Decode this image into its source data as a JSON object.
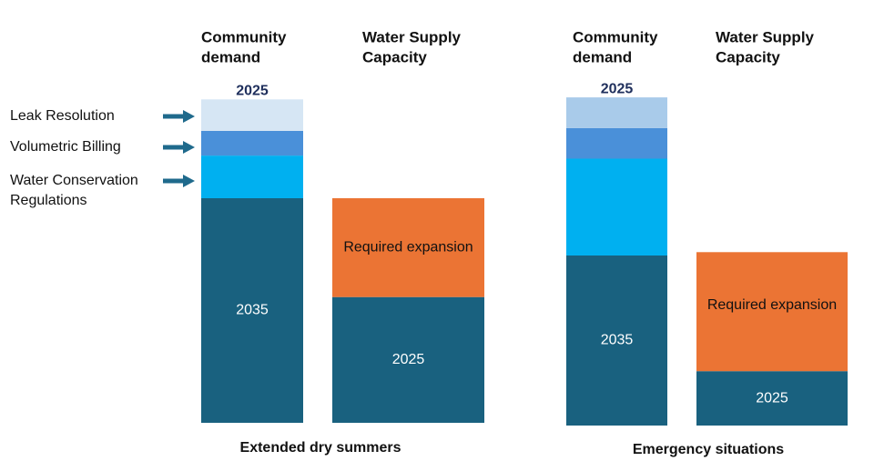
{
  "chart_data": {
    "type": "bar",
    "title": "",
    "value_unit": "relative water volume (estimated, 2035 demand = 100)",
    "legend_labels": [
      "Leak Resolution",
      "Volumetric Billing",
      "Water Conservation Regulations"
    ],
    "colors": {
      "demand_base": "#19617f",
      "conservation_regulations": "#00b0f0",
      "volumetric_billing": "#4a90d9",
      "leak_resolution": "#d6e6f4",
      "leak_resolution_alt": "#a9cbea",
      "required_expansion": "#eb7434",
      "capacity_base": "#19617f",
      "axis_text": "#111111",
      "year_label_dark": "#1f2f5c",
      "arrow": "#1f6a8c"
    },
    "panels": [
      {
        "id": "extended-dry-summers",
        "scenario": "Extended dry summers",
        "demand_header": "Community\ndemand",
        "capacity_header": "Water Supply\nCapacity",
        "demand_top_label": "2025",
        "demand": [
          {
            "key": "base",
            "label": "2035",
            "value": 100,
            "color_key": "demand_base"
          },
          {
            "key": "conservation_regulations",
            "label": "",
            "value": 19,
            "color_key": "conservation_regulations"
          },
          {
            "key": "volumetric_billing",
            "label": "",
            "value": 11,
            "color_key": "volumetric_billing"
          },
          {
            "key": "leak_resolution",
            "label": "",
            "value": 14,
            "color_key": "leak_resolution"
          }
        ],
        "capacity": [
          {
            "key": "base",
            "label": "2025",
            "value": 56,
            "color_key": "capacity_base"
          },
          {
            "key": "required_expansion",
            "label": "Required expansion",
            "value": 44,
            "color_key": "required_expansion"
          }
        ]
      },
      {
        "id": "emergency-situations",
        "scenario": "Emergency situations",
        "demand_header": "Community\ndemand",
        "capacity_header": "Water Supply\nCapacity",
        "demand_top_label": "2025",
        "demand": [
          {
            "key": "base",
            "label": "2035",
            "value": 100,
            "color_key": "demand_base"
          },
          {
            "key": "conservation_regulations",
            "label": "",
            "value": 57,
            "color_key": "conservation_regulations"
          },
          {
            "key": "volumetric_billing",
            "label": "",
            "value": 18,
            "color_key": "volumetric_billing"
          },
          {
            "key": "leak_resolution",
            "label": "",
            "value": 18,
            "color_key": "leak_resolution_alt"
          }
        ],
        "capacity": [
          {
            "key": "base",
            "label": "2025",
            "value": 32,
            "color_key": "capacity_base"
          },
          {
            "key": "required_expansion",
            "label": "Required expansion",
            "value": 70,
            "color_key": "required_expansion"
          }
        ]
      }
    ]
  }
}
